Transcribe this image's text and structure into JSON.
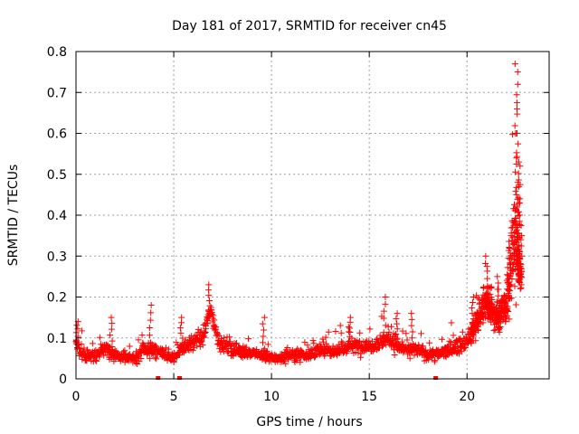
{
  "chart_data": {
    "type": "scatter",
    "title": "Day 181 of 2017, SRMTID for receiver cn45",
    "xlabel": "GPS time / hours",
    "ylabel": "SRMTID / TECUs",
    "xlim": [
      0,
      24.2
    ],
    "ylim": [
      0,
      0.8
    ],
    "grid": true,
    "marker": "+",
    "marker_color": "#ff0000",
    "xticks": [
      0,
      5,
      10,
      15,
      20
    ],
    "xtick_labels": [
      "0",
      "5",
      "10",
      "15",
      "20"
    ],
    "yticks": [
      0,
      0.1,
      0.2,
      0.3,
      0.4,
      0.5,
      0.6,
      0.7,
      0.8
    ],
    "ytick_labels": [
      "0",
      "0.1",
      "0.2",
      "0.3",
      "0.4",
      "0.5",
      "0.6",
      "0.7",
      "0.8"
    ],
    "series": [
      {
        "name": "SRMTID",
        "description": "Dense scatter; approximate envelope of typical values with spikes; points generated from profile",
        "profile": [
          [
            0.0,
            0.09,
            0.04
          ],
          [
            0.5,
            0.05,
            0.02
          ],
          [
            1.0,
            0.06,
            0.025
          ],
          [
            1.5,
            0.07,
            0.03
          ],
          [
            2.0,
            0.06,
            0.025
          ],
          [
            2.5,
            0.05,
            0.02
          ],
          [
            3.0,
            0.05,
            0.02
          ],
          [
            3.5,
            0.07,
            0.03
          ],
          [
            4.0,
            0.07,
            0.03
          ],
          [
            4.5,
            0.06,
            0.025
          ],
          [
            5.0,
            0.05,
            0.02
          ],
          [
            5.5,
            0.08,
            0.03
          ],
          [
            6.0,
            0.09,
            0.03
          ],
          [
            6.5,
            0.1,
            0.035
          ],
          [
            6.9,
            0.17,
            0.03
          ],
          [
            7.3,
            0.09,
            0.03
          ],
          [
            8.0,
            0.07,
            0.025
          ],
          [
            8.5,
            0.07,
            0.025
          ],
          [
            9.0,
            0.06,
            0.02
          ],
          [
            9.5,
            0.06,
            0.025
          ],
          [
            10.0,
            0.05,
            0.02
          ],
          [
            10.5,
            0.05,
            0.02
          ],
          [
            11.0,
            0.06,
            0.025
          ],
          [
            11.5,
            0.06,
            0.025
          ],
          [
            12.0,
            0.06,
            0.025
          ],
          [
            12.5,
            0.07,
            0.025
          ],
          [
            13.0,
            0.07,
            0.025
          ],
          [
            13.5,
            0.07,
            0.03
          ],
          [
            14.0,
            0.08,
            0.03
          ],
          [
            14.5,
            0.08,
            0.03
          ],
          [
            15.0,
            0.08,
            0.03
          ],
          [
            15.5,
            0.09,
            0.03
          ],
          [
            16.0,
            0.1,
            0.04
          ],
          [
            16.5,
            0.08,
            0.03
          ],
          [
            17.0,
            0.07,
            0.025
          ],
          [
            17.5,
            0.07,
            0.025
          ],
          [
            18.0,
            0.06,
            0.025
          ],
          [
            18.5,
            0.06,
            0.025
          ],
          [
            19.0,
            0.07,
            0.03
          ],
          [
            19.5,
            0.08,
            0.03
          ],
          [
            20.0,
            0.09,
            0.03
          ],
          [
            20.5,
            0.14,
            0.05
          ],
          [
            21.0,
            0.19,
            0.06
          ],
          [
            21.5,
            0.15,
            0.05
          ],
          [
            22.0,
            0.18,
            0.08
          ],
          [
            22.4,
            0.35,
            0.2
          ],
          [
            22.7,
            0.25,
            0.08
          ]
        ],
        "spikes": [
          [
            0.05,
            0.14
          ],
          [
            1.8,
            0.15
          ],
          [
            3.8,
            0.18
          ],
          [
            5.4,
            0.15
          ],
          [
            6.8,
            0.23
          ],
          [
            9.6,
            0.15
          ],
          [
            14.0,
            0.15
          ],
          [
            15.8,
            0.2
          ],
          [
            16.4,
            0.16
          ],
          [
            17.2,
            0.16
          ],
          [
            20.3,
            0.2
          ],
          [
            21.0,
            0.3
          ],
          [
            21.6,
            0.25
          ],
          [
            22.2,
            0.35
          ],
          [
            22.5,
            0.77
          ],
          [
            22.55,
            0.75
          ],
          [
            22.6,
            0.72
          ],
          [
            22.55,
            0.66
          ],
          [
            22.5,
            0.6
          ],
          [
            22.65,
            0.53
          ],
          [
            22.7,
            0.52
          ],
          [
            22.6,
            0.47
          ],
          [
            22.7,
            0.44
          ],
          [
            22.75,
            0.4
          ],
          [
            22.6,
            0.37
          ]
        ],
        "zeros": [
          4.2,
          5.3,
          18.4
        ]
      }
    ]
  }
}
